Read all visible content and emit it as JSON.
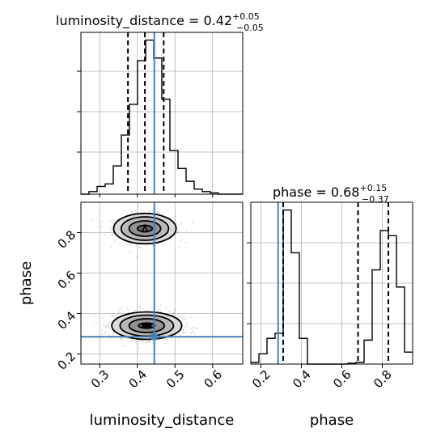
{
  "chart_data": {
    "type": "corner",
    "parameters": [
      "luminosity_distance",
      "phase"
    ],
    "truths": {
      "luminosity_distance": 0.445,
      "phase": 0.285
    },
    "grid": true,
    "titles": {
      "luminosity_distance": {
        "prefix": "luminosity_distance = 0.42",
        "sup": "+0.05",
        "sub": "−0.05"
      },
      "phase": {
        "prefix": "phase = 0.68",
        "sup": "+0.15",
        "sub": "−0.37"
      }
    },
    "axis_labels": {
      "x_left": "luminosity_distance",
      "x_right": "phase",
      "y_lower": "phase"
    },
    "luminosity_distance_hist": {
      "xlim": [
        0.25,
        0.68
      ],
      "xticks": [
        "0.3",
        "0.4",
        "0.5",
        "0.6"
      ],
      "xtick_values": [
        0.3,
        0.4,
        0.5,
        0.6
      ],
      "quantiles": [
        0.375,
        0.42,
        0.47
      ],
      "bin_edges": [
        0.25,
        0.2715,
        0.293,
        0.3145,
        0.336,
        0.3575,
        0.379,
        0.4005,
        0.422,
        0.4435,
        0.465,
        0.4865,
        0.508,
        0.5295,
        0.551,
        0.5725,
        0.594,
        0.6155,
        0.637,
        0.6585,
        0.68
      ],
      "counts": [
        0,
        2,
        6,
        8,
        22,
        46,
        70,
        104,
        120,
        106,
        74,
        34,
        20,
        10,
        4,
        2,
        1,
        0,
        0,
        0
      ]
    },
    "phase_hist": {
      "xlim": [
        0.15,
        0.95
      ],
      "xticks": [
        "0.2",
        "0.4",
        "0.6",
        "0.8"
      ],
      "xtick_values": [
        0.2,
        0.4,
        0.6,
        0.8
      ],
      "quantiles": [
        0.31,
        0.68,
        0.83
      ],
      "bin_edges": [
        0.15,
        0.19,
        0.23,
        0.27,
        0.31,
        0.35,
        0.39,
        0.43,
        0.47,
        0.51,
        0.55,
        0.59,
        0.63,
        0.67,
        0.71,
        0.75,
        0.79,
        0.83,
        0.87,
        0.91,
        0.95
      ],
      "counts": [
        2,
        12,
        30,
        36,
        180,
        130,
        30,
        0,
        0,
        0,
        0,
        0,
        1,
        2,
        28,
        110,
        156,
        150,
        90,
        14
      ]
    },
    "scatter_2d": {
      "xlim": [
        0.25,
        0.68
      ],
      "ylim": [
        0.15,
        0.95
      ],
      "yticks": [
        "0.2",
        "0.4",
        "0.6",
        "0.8"
      ],
      "ytick_values": [
        0.2,
        0.4,
        0.6,
        0.8
      ],
      "clusters": [
        {
          "cx": 0.42,
          "cy": 0.82,
          "sx": 0.04,
          "sy": 0.035,
          "n": 700
        },
        {
          "cx": 0.425,
          "cy": 0.34,
          "sx": 0.045,
          "sy": 0.035,
          "n": 850
        }
      ],
      "contours": [
        {
          "cx": 0.42,
          "cy": 0.82,
          "rx": [
            0.083,
            0.063,
            0.042,
            0.02
          ],
          "ry": [
            0.075,
            0.058,
            0.038,
            0.016
          ]
        },
        {
          "cx": 0.425,
          "cy": 0.34,
          "rx": [
            0.093,
            0.071,
            0.047,
            0.022
          ],
          "ry": [
            0.068,
            0.052,
            0.034,
            0.013
          ]
        }
      ]
    },
    "colors": {
      "hist": "#000000",
      "truth": "#4682b4",
      "grid": "#b0b0b0",
      "points": "#9e9e9e"
    }
  }
}
